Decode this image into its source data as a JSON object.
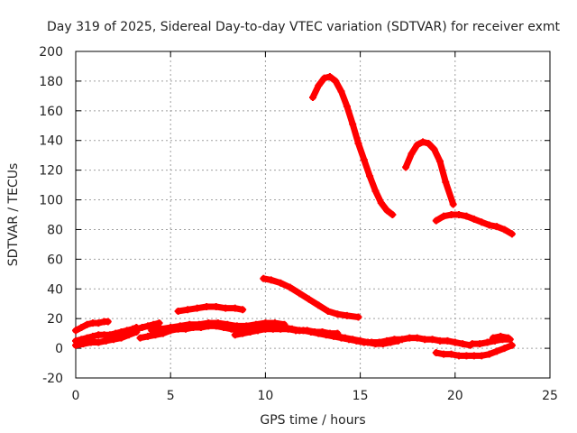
{
  "chart_data": {
    "type": "scatter",
    "title": "Day 319 of 2025, Sidereal Day-to-day VTEC variation (SDTVAR) for receiver exmt",
    "xlabel": "GPS time / hours",
    "ylabel": "SDTVAR / TECUs",
    "xlim": [
      0,
      25
    ],
    "ylim": [
      -20,
      200
    ],
    "xticks": [
      0,
      5,
      10,
      15,
      20,
      25
    ],
    "yticks": [
      -20,
      0,
      20,
      40,
      60,
      80,
      100,
      120,
      140,
      160,
      180,
      200
    ],
    "grid": true,
    "legend": "none",
    "marker": "plus",
    "color": "#ff0000",
    "series": [
      {
        "name": "arc-high-1",
        "x": [
          12.5,
          12.8,
          13.1,
          13.4,
          13.7,
          14.0,
          14.3,
          14.6,
          14.9,
          15.2,
          15.5,
          15.8,
          16.1,
          16.4,
          16.7
        ],
        "y": [
          169,
          177,
          182,
          183,
          180,
          173,
          163,
          151,
          138,
          127,
          116,
          106,
          98,
          93,
          90
        ]
      },
      {
        "name": "arc-high-2",
        "x": [
          17.4,
          17.7,
          18.0,
          18.3,
          18.6,
          18.9,
          19.2,
          19.5,
          19.9
        ],
        "y": [
          122,
          131,
          137,
          139,
          138,
          134,
          126,
          112,
          97
        ]
      },
      {
        "name": "arc-80",
        "x": [
          19.0,
          19.4,
          19.8,
          20.2,
          20.6,
          21.0,
          21.4,
          21.8,
          22.2,
          22.6,
          23.0
        ],
        "y": [
          86,
          89,
          90,
          90,
          89,
          87,
          85,
          83,
          82,
          80,
          77
        ]
      },
      {
        "name": "arc-47",
        "x": [
          9.9,
          10.3,
          10.8,
          11.3,
          11.8,
          12.3,
          12.8,
          13.3,
          13.8,
          14.3,
          14.9
        ],
        "y": [
          47,
          46,
          44,
          41,
          37,
          33,
          29,
          25,
          23,
          22,
          21
        ]
      },
      {
        "name": "arc-27",
        "x": [
          5.4,
          5.9,
          6.4,
          6.9,
          7.4,
          7.9,
          8.4,
          8.8
        ],
        "y": [
          25,
          26,
          27,
          28,
          28,
          27,
          27,
          26
        ]
      },
      {
        "name": "arc-early-1",
        "x": [
          0.0,
          0.3,
          0.6,
          0.9,
          1.2,
          1.5,
          1.7
        ],
        "y": [
          12,
          14,
          16,
          17,
          17,
          18,
          18
        ]
      },
      {
        "name": "arc-early-2",
        "x": [
          0.0,
          0.3,
          0.6,
          0.9,
          1.2,
          1.5,
          1.8,
          2.1,
          2.4,
          2.7,
          3.0,
          3.2
        ],
        "y": [
          5,
          6,
          7,
          8,
          9,
          9,
          9,
          10,
          11,
          12,
          13,
          14
        ]
      },
      {
        "name": "arc-early-3",
        "x": [
          0.0,
          0.4,
          0.8,
          1.2,
          1.6,
          2.0,
          2.4,
          2.8,
          3.2
        ],
        "y": [
          2,
          3,
          4,
          4,
          5,
          6,
          7,
          9,
          11
        ]
      },
      {
        "name": "arc-early-4",
        "x": [
          3.2,
          3.5,
          3.8,
          4.1,
          4.4
        ],
        "y": [
          13,
          14,
          15,
          16,
          17
        ]
      },
      {
        "name": "arc-main-a",
        "x": [
          3.4,
          3.8,
          4.2,
          4.6,
          5.0,
          5.4,
          5.8,
          6.2,
          6.6,
          7.0,
          7.4,
          7.8,
          8.2,
          8.6,
          9.0,
          9.4,
          9.8,
          10.2,
          10.6,
          11.0,
          11.4,
          11.8,
          12.2,
          12.6,
          13.0,
          13.4,
          13.8
        ],
        "y": [
          7,
          8,
          9,
          10,
          12,
          13,
          13,
          14,
          14,
          15,
          15,
          14,
          13,
          12,
          13,
          14,
          15,
          15,
          15,
          14,
          13,
          12,
          12,
          11,
          11,
          10,
          10
        ]
      },
      {
        "name": "arc-main-b",
        "x": [
          4.0,
          4.5,
          5.0,
          5.5,
          6.0,
          6.5,
          7.0,
          7.5,
          8.0,
          8.5,
          9.0,
          9.5,
          10.0,
          10.5,
          11.0
        ],
        "y": [
          12,
          13,
          14,
          15,
          16,
          16,
          17,
          17,
          16,
          15,
          15,
          16,
          17,
          17,
          16
        ]
      },
      {
        "name": "arc-main-c",
        "x": [
          8.4,
          8.8,
          9.2,
          9.6,
          10.0,
          10.4,
          10.8,
          11.2,
          11.6,
          12.0,
          12.4,
          12.8,
          13.2,
          13.6,
          14.0,
          14.4,
          14.8,
          15.2,
          15.6,
          16.0,
          16.4,
          16.8,
          17.2,
          17.6,
          18.0,
          18.4,
          18.8,
          19.2,
          19.6,
          20.0,
          20.4,
          20.8
        ],
        "y": [
          9,
          10,
          11,
          12,
          13,
          13,
          13,
          13,
          12,
          12,
          11,
          10,
          9,
          8,
          7,
          6,
          5,
          4,
          4,
          4,
          5,
          6,
          6,
          7,
          7,
          6,
          6,
          5,
          5,
          4,
          3,
          2
        ]
      },
      {
        "name": "arc-main-d",
        "x": [
          13.8,
          14.2,
          14.6,
          15.0,
          15.4,
          15.8,
          16.2,
          16.6,
          17.0
        ],
        "y": [
          8,
          7,
          6,
          5,
          4,
          3,
          3,
          4,
          5
        ]
      },
      {
        "name": "arc-late-1",
        "x": [
          20.9,
          21.3,
          21.7,
          22.1,
          22.5,
          22.9
        ],
        "y": [
          3,
          3,
          4,
          5,
          6,
          6
        ]
      },
      {
        "name": "arc-late-2",
        "x": [
          19.0,
          19.4,
          19.8,
          20.2,
          20.6,
          21.0,
          21.4,
          21.8,
          22.2,
          22.6,
          23.0
        ],
        "y": [
          -3,
          -4,
          -4,
          -5,
          -5,
          -5,
          -5,
          -4,
          -2,
          0,
          2
        ]
      },
      {
        "name": "arc-late-3",
        "x": [
          22.0,
          22.4,
          22.8
        ],
        "y": [
          7,
          8,
          7
        ]
      }
    ]
  }
}
